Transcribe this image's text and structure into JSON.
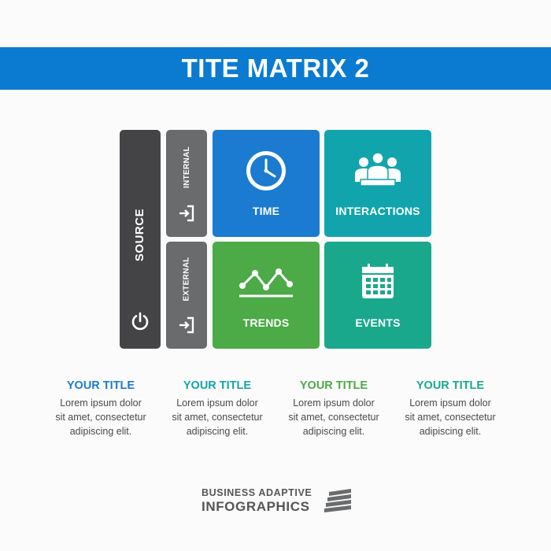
{
  "header": {
    "title": "TITE MATRIX 2"
  },
  "matrix": {
    "source_label": "SOURCE",
    "internal_label": "INTERNAL",
    "external_label": "EXTERNAL",
    "tiles": {
      "time": "TIME",
      "interactions": "INTERACTIONS",
      "trends": "TRENDS",
      "events": "EVENTS"
    }
  },
  "colors": {
    "header": "#0a7bd1",
    "time": "#1a7bd0",
    "interactions": "#12a4ad",
    "trends": "#4caa47",
    "events": "#1aa88d",
    "source": "#444446",
    "side": "#6a6b6d"
  },
  "icons": [
    "power-icon",
    "enter-icon",
    "clock-icon",
    "people-icon",
    "trend-line-icon",
    "calendar-icon"
  ],
  "descriptions": [
    {
      "title": "YOUR TITLE",
      "color": "#1a7bd0",
      "line1": "Lorem ipsum dolor",
      "line2": "sit amet, consectetur",
      "line3": "adipiscing elit."
    },
    {
      "title": "YOUR TITLE",
      "color": "#12a4ad",
      "line1": "Lorem ipsum dolor",
      "line2": "sit amet, consectetur",
      "line3": "adipiscing elit."
    },
    {
      "title": "YOUR TITLE",
      "color": "#4caa47",
      "line1": "Lorem ipsum dolor",
      "line2": "sit amet, consectetur",
      "line3": "adipiscing elit."
    },
    {
      "title": "YOUR TITLE",
      "color": "#1aa88d",
      "line1": "Lorem ipsum dolor",
      "line2": "sit amet, consectetur",
      "line3": "adipiscing elit."
    }
  ],
  "brand": {
    "line1": "BUSINESS ADAPTIVE",
    "line2": "INFOGRAPHICS"
  }
}
